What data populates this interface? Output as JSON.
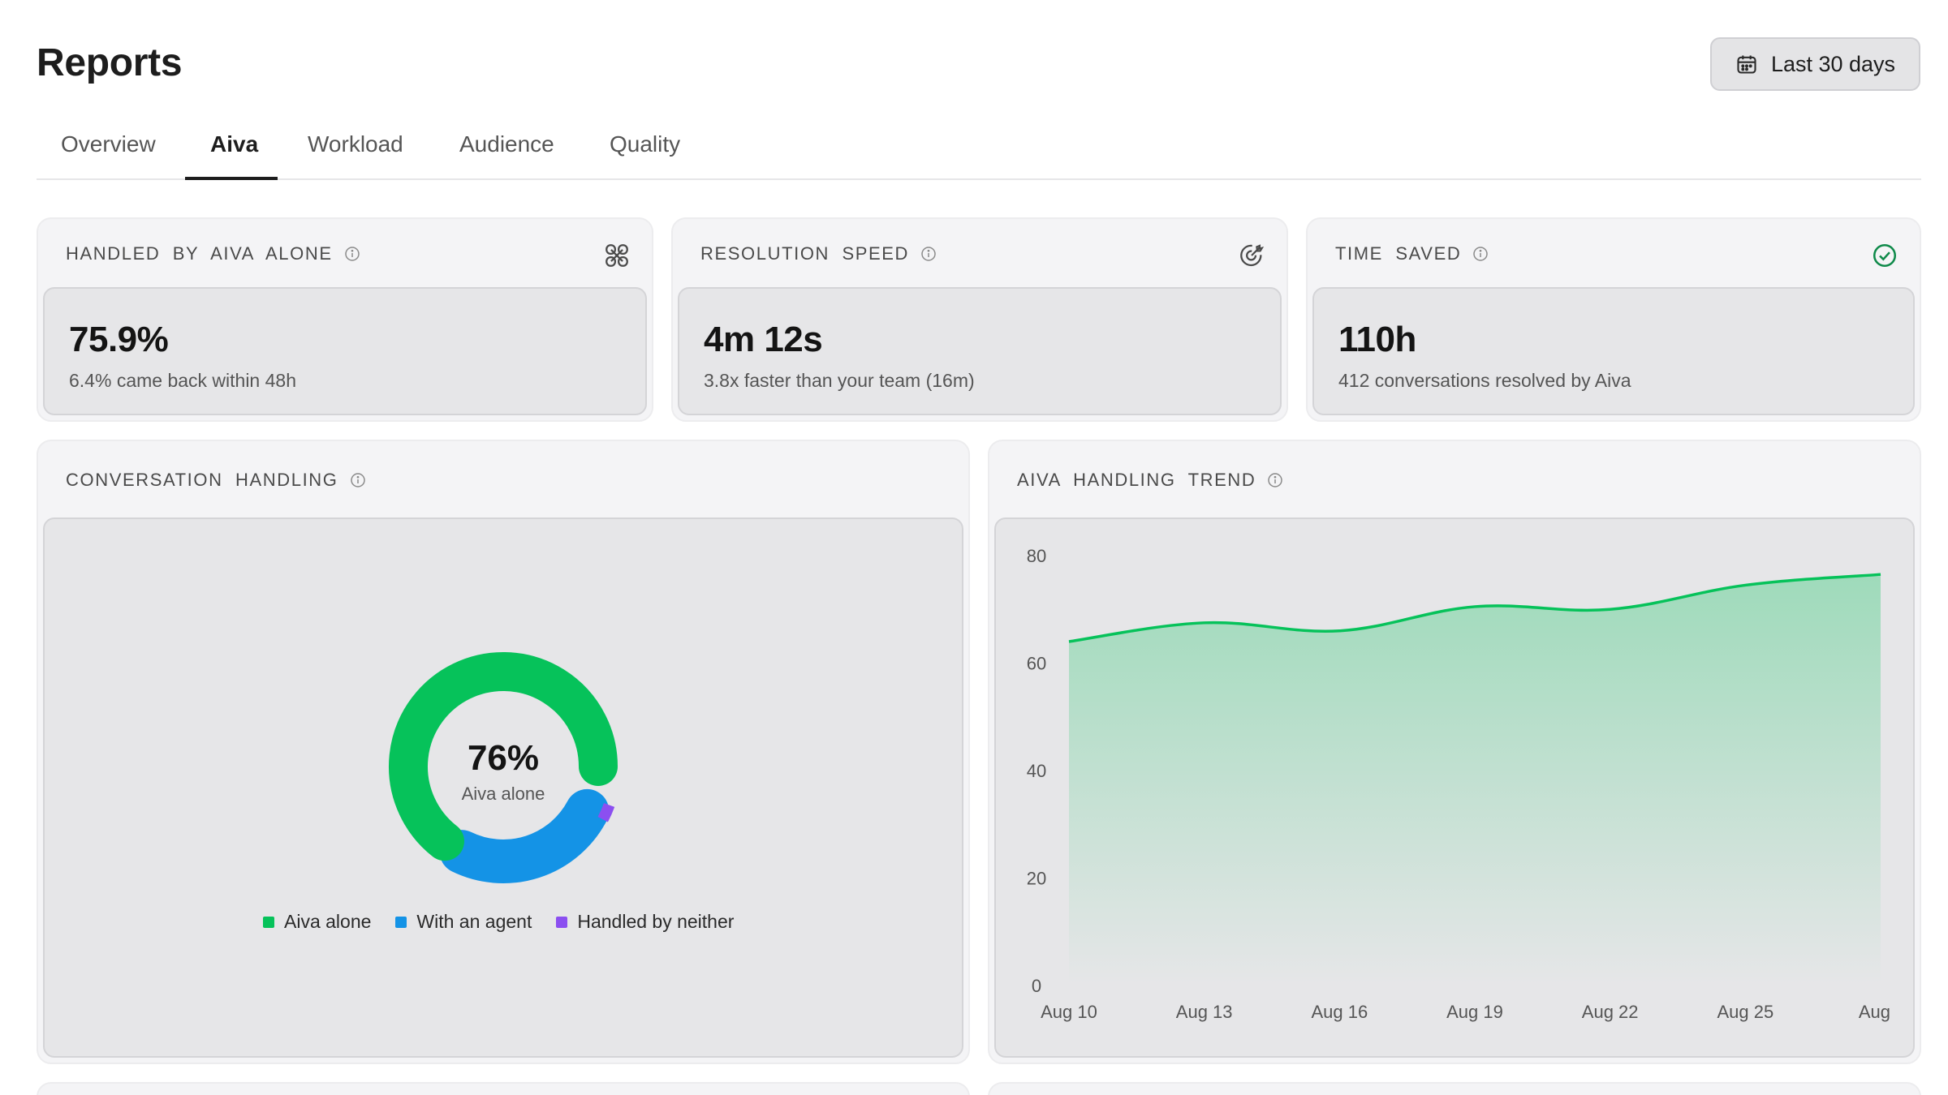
{
  "page": {
    "title": "Reports"
  },
  "date_range": {
    "label": "Last 30 days",
    "icon": "calendar-icon"
  },
  "tabs": [
    {
      "label": "Overview",
      "active": false
    },
    {
      "label": "Aiva",
      "active": true
    },
    {
      "label": "Workload",
      "active": false
    },
    {
      "label": "Audience",
      "active": false
    },
    {
      "label": "Quality",
      "active": false
    }
  ],
  "metrics": {
    "handled_alone": {
      "title": "HANDLED  BY  AIVA  ALONE",
      "value": "75.9%",
      "sub": "6.4% came back within 48h",
      "icon": "grid-icon"
    },
    "resolution_speed": {
      "title": "RESOLUTION  SPEED",
      "value": "4m 12s",
      "sub": "3.8x faster than your team (16m)",
      "icon": "target-icon"
    },
    "time_saved": {
      "title": "TIME  SAVED",
      "value": "110h",
      "sub": "412 conversations resolved by Aiva",
      "icon": "check-circle-icon"
    }
  },
  "conversation_handling": {
    "title": "CONVERSATION  HANDLING",
    "center_value": "76%",
    "center_label": "Aiva alone",
    "legend": [
      {
        "label": "Aiva alone",
        "color": "#06c25a"
      },
      {
        "label": "With an agent",
        "color": "#1493e6"
      },
      {
        "label": "Handled by neither",
        "color": "#8b4ff0"
      }
    ]
  },
  "trend": {
    "title": "AIVA  HANDLING  TREND"
  },
  "chart_data": [
    {
      "type": "pie",
      "categories": [
        "Aiva alone",
        "With an agent",
        "Handled by neither"
      ],
      "values": [
        76,
        20,
        4
      ]
    },
    {
      "type": "area",
      "x": [
        "Aug 10",
        "Aug 13",
        "Aug 16",
        "Aug 19",
        "Aug 22",
        "Aug 25",
        "Aug"
      ],
      "series": [
        {
          "values": [
            64,
            67.5,
            66,
            70.5,
            70,
            74.5,
            76.5
          ]
        }
      ],
      "yticks": [
        0,
        20,
        40,
        60,
        80
      ],
      "ylim": [
        0,
        80
      ],
      "color": "#06c25a"
    }
  ]
}
